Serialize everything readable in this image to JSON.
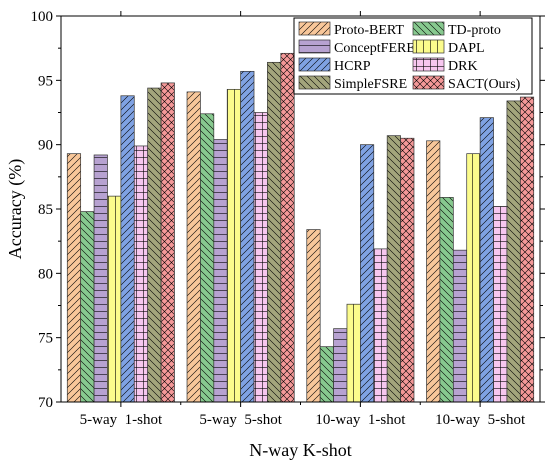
{
  "chart_data": {
    "type": "bar",
    "xlabel": "N-way K-shot",
    "ylabel": "Accuracy (%)",
    "ylim": [
      70,
      100
    ],
    "yticks": [
      70,
      75,
      80,
      85,
      90,
      95,
      100
    ],
    "categories": [
      "5-way  1-shot",
      "5-way  5-shot",
      "10-way  1-shot",
      "10-way  5-shot"
    ],
    "legend_position": "top-right",
    "series": [
      {
        "name": "Proto-BERT",
        "color": "#f8c79a",
        "pattern": "diag",
        "values": [
          89.3,
          94.1,
          83.4,
          90.3
        ]
      },
      {
        "name": "TD-proto",
        "color": "#87c98f",
        "pattern": "backdiag",
        "values": [
          84.8,
          92.4,
          74.3,
          85.9
        ]
      },
      {
        "name": "ConceptFERE",
        "color": "#b7a2d1",
        "pattern": "hlines",
        "values": [
          89.2,
          90.4,
          75.7,
          81.8
        ]
      },
      {
        "name": "DAPL",
        "color": "#fbfb8c",
        "pattern": "vlines",
        "values": [
          86.0,
          94.3,
          77.6,
          89.3
        ]
      },
      {
        "name": "HCRP",
        "color": "#7fa2e3",
        "pattern": "diag",
        "values": [
          93.8,
          95.7,
          90.0,
          92.1
        ]
      },
      {
        "name": "DRK",
        "color": "#f7c7ef",
        "pattern": "grid",
        "values": [
          89.9,
          92.5,
          81.9,
          85.2
        ]
      },
      {
        "name": "SimpleFSRE",
        "color": "#a3a57c",
        "pattern": "backdiag",
        "values": [
          94.4,
          96.4,
          90.7,
          93.4
        ]
      },
      {
        "name": "SACT(Ours)",
        "color": "#f49898",
        "pattern": "crossdiag",
        "values": [
          94.8,
          97.1,
          90.5,
          93.7
        ]
      }
    ]
  }
}
